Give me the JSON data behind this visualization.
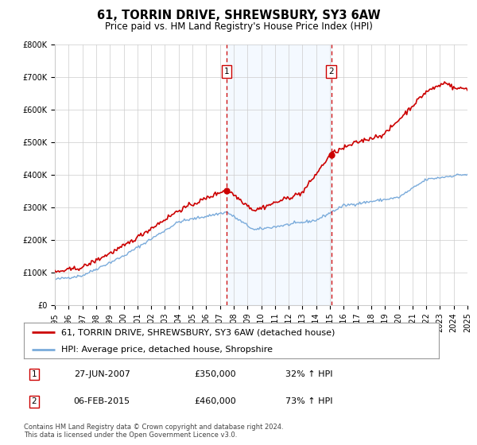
{
  "title": "61, TORRIN DRIVE, SHREWSBURY, SY3 6AW",
  "subtitle": "Price paid vs. HM Land Registry's House Price Index (HPI)",
  "property_label": "61, TORRIN DRIVE, SHREWSBURY, SY3 6AW (detached house)",
  "hpi_label": "HPI: Average price, detached house, Shropshire",
  "footnote1": "Contains HM Land Registry data © Crown copyright and database right 2024.",
  "footnote2": "This data is licensed under the Open Government Licence v3.0.",
  "sale1_date": "27-JUN-2007",
  "sale1_price": "£350,000",
  "sale1_hpi": "32% ↑ HPI",
  "sale2_date": "06-FEB-2015",
  "sale2_price": "£460,000",
  "sale2_hpi": "73% ↑ HPI",
  "sale1_x": 2007.49,
  "sale1_y": 350000,
  "sale2_x": 2015.09,
  "sale2_y": 460000,
  "vline1_x": 2007.49,
  "vline2_x": 2015.09,
  "ylim": [
    0,
    800000
  ],
  "xlim": [
    1995,
    2025
  ],
  "yticks": [
    0,
    100000,
    200000,
    300000,
    400000,
    500000,
    600000,
    700000,
    800000
  ],
  "ytick_labels": [
    "£0",
    "£100K",
    "£200K",
    "£300K",
    "£400K",
    "£500K",
    "£600K",
    "£700K",
    "£800K"
  ],
  "xticks": [
    1995,
    1996,
    1997,
    1998,
    1999,
    2000,
    2001,
    2002,
    2003,
    2004,
    2005,
    2006,
    2007,
    2008,
    2009,
    2010,
    2011,
    2012,
    2013,
    2014,
    2015,
    2016,
    2017,
    2018,
    2019,
    2020,
    2021,
    2022,
    2023,
    2024,
    2025
  ],
  "property_color": "#cc0000",
  "hpi_color": "#7aabdb",
  "vline_color": "#cc0000",
  "shade_color": "#ddeeff",
  "background_color": "#ffffff",
  "grid_color": "#cccccc",
  "title_fontsize": 10.5,
  "subtitle_fontsize": 8.5,
  "tick_fontsize": 7,
  "legend_fontsize": 8,
  "table_fontsize": 8,
  "footnote_fontsize": 6
}
